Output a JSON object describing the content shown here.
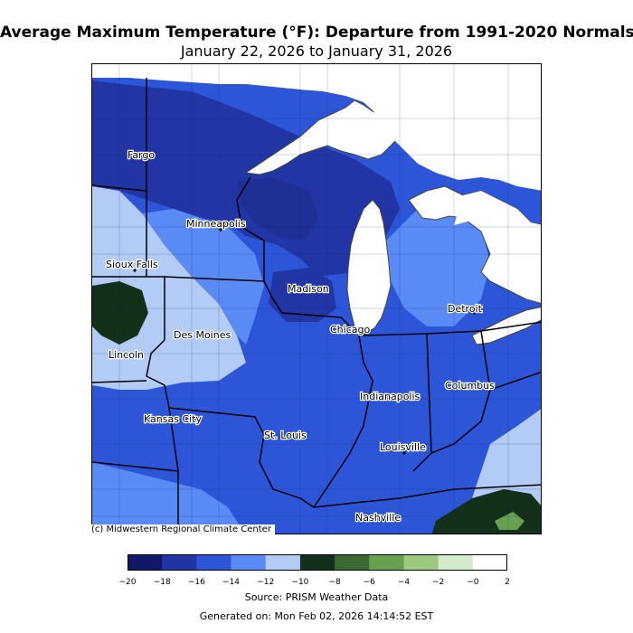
{
  "title": "Average Maximum Temperature (°F): Departure from 1991-2020 Normals",
  "subtitle": "January 22, 2026 to January 31, 2026",
  "copyright": "(c) Midwestern Regional Climate Center",
  "source": "Source: PRISM Weather Data",
  "generated": "Generated on: Mon Feb 02, 2026 14:14:52 EST",
  "cities": [
    {
      "name": "Fargo"
    },
    {
      "name": "Minneapolis"
    },
    {
      "name": "Sioux Falls"
    },
    {
      "name": "Madison"
    },
    {
      "name": "Detroit"
    },
    {
      "name": "Des Moines"
    },
    {
      "name": "Chicago"
    },
    {
      "name": "Lincoln"
    },
    {
      "name": "Columbus"
    },
    {
      "name": "Indianapolis"
    },
    {
      "name": "Kansas City"
    },
    {
      "name": "St. Louis"
    },
    {
      "name": "Louisville"
    },
    {
      "name": "Nashville"
    }
  ],
  "legend": {
    "ticks": [
      "−20",
      "−18",
      "−16",
      "−14",
      "−12",
      "−10",
      "−8",
      "−6",
      "−4",
      "−2",
      "−0",
      "2"
    ],
    "colors": [
      "#14186b",
      "#2136a4",
      "#2c55d8",
      "#5a8af4",
      "#b3ccf5",
      "#13301a",
      "#3a6a32",
      "#67a050",
      "#9cc880",
      "#d3ebcb",
      "#ffffff"
    ]
  },
  "colors": {
    "deep_blue": "#2136a4",
    "mid_blue": "#2c55d8",
    "light_blue": "#5a8af4",
    "pale_blue": "#b3ccf5",
    "dark_green": "#13301a",
    "water": "#ffffff"
  }
}
